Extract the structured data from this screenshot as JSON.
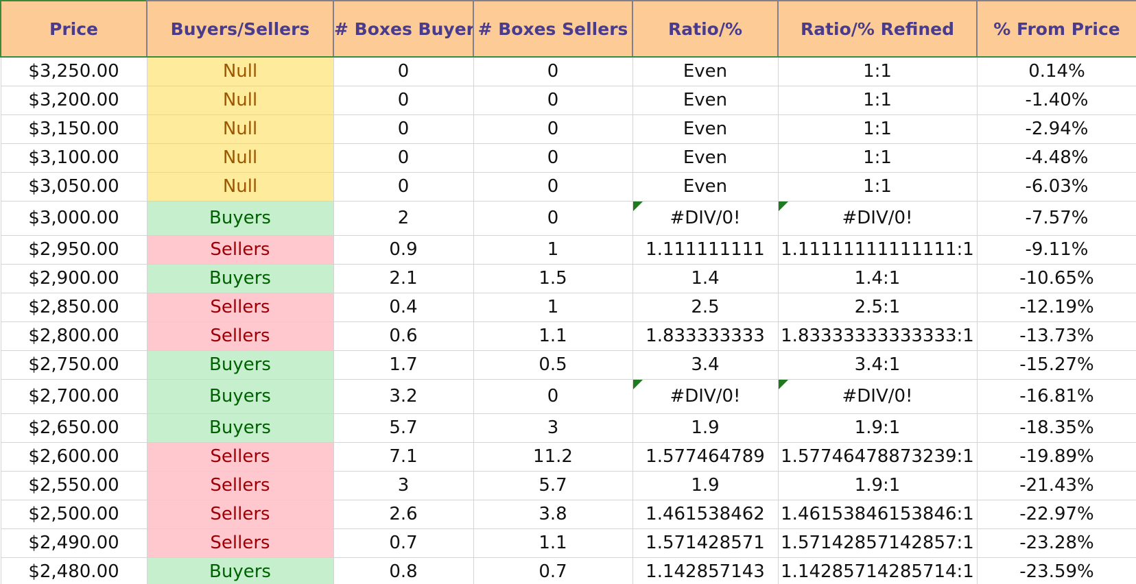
{
  "columns": [
    "Price",
    "Buyers/Sellers",
    "# Boxes Buyers",
    "# Boxes Sellers",
    "Ratio/%",
    "Ratio/% Refined",
    "% From Price"
  ],
  "rows": [
    {
      "price": "$3,250.00",
      "side": "Null",
      "boxes_buyers": "0",
      "boxes_sellers": "0",
      "ratio": "Even",
      "ratio_refined": "1:1",
      "from_price": "0.14%"
    },
    {
      "price": "$3,200.00",
      "side": "Null",
      "boxes_buyers": "0",
      "boxes_sellers": "0",
      "ratio": "Even",
      "ratio_refined": "1:1",
      "from_price": "-1.40%"
    },
    {
      "price": "$3,150.00",
      "side": "Null",
      "boxes_buyers": "0",
      "boxes_sellers": "0",
      "ratio": "Even",
      "ratio_refined": "1:1",
      "from_price": "-2.94%"
    },
    {
      "price": "$3,100.00",
      "side": "Null",
      "boxes_buyers": "0",
      "boxes_sellers": "0",
      "ratio": "Even",
      "ratio_refined": "1:1",
      "from_price": "-4.48%"
    },
    {
      "price": "$3,050.00",
      "side": "Null",
      "boxes_buyers": "0",
      "boxes_sellers": "0",
      "ratio": "Even",
      "ratio_refined": "1:1",
      "from_price": "-6.03%"
    },
    {
      "price": "$3,000.00",
      "side": "Buyers",
      "boxes_buyers": "2",
      "boxes_sellers": "0",
      "ratio": "#DIV/0!",
      "ratio_refined": "#DIV/0!",
      "from_price": "-7.57%"
    },
    {
      "price": "$2,950.00",
      "side": "Sellers",
      "boxes_buyers": "0.9",
      "boxes_sellers": "1",
      "ratio": "1.111111111",
      "ratio_refined": "1.11111111111111:1",
      "from_price": "-9.11%"
    },
    {
      "price": "$2,900.00",
      "side": "Buyers",
      "boxes_buyers": "2.1",
      "boxes_sellers": "1.5",
      "ratio": "1.4",
      "ratio_refined": "1.4:1",
      "from_price": "-10.65%"
    },
    {
      "price": "$2,850.00",
      "side": "Sellers",
      "boxes_buyers": "0.4",
      "boxes_sellers": "1",
      "ratio": "2.5",
      "ratio_refined": "2.5:1",
      "from_price": "-12.19%"
    },
    {
      "price": "$2,800.00",
      "side": "Sellers",
      "boxes_buyers": "0.6",
      "boxes_sellers": "1.1",
      "ratio": "1.833333333",
      "ratio_refined": "1.83333333333333:1",
      "from_price": "-13.73%"
    },
    {
      "price": "$2,750.00",
      "side": "Buyers",
      "boxes_buyers": "1.7",
      "boxes_sellers": "0.5",
      "ratio": "3.4",
      "ratio_refined": "3.4:1",
      "from_price": "-15.27%"
    },
    {
      "price": "$2,700.00",
      "side": "Buyers",
      "boxes_buyers": "3.2",
      "boxes_sellers": "0",
      "ratio": "#DIV/0!",
      "ratio_refined": "#DIV/0!",
      "from_price": "-16.81%"
    },
    {
      "price": "$2,650.00",
      "side": "Buyers",
      "boxes_buyers": "5.7",
      "boxes_sellers": "3",
      "ratio": "1.9",
      "ratio_refined": "1.9:1",
      "from_price": "-18.35%"
    },
    {
      "price": "$2,600.00",
      "side": "Sellers",
      "boxes_buyers": "7.1",
      "boxes_sellers": "11.2",
      "ratio": "1.577464789",
      "ratio_refined": "1.57746478873239:1",
      "from_price": "-19.89%"
    },
    {
      "price": "$2,550.00",
      "side": "Sellers",
      "boxes_buyers": "3",
      "boxes_sellers": "5.7",
      "ratio": "1.9",
      "ratio_refined": "1.9:1",
      "from_price": "-21.43%"
    },
    {
      "price": "$2,500.00",
      "side": "Sellers",
      "boxes_buyers": "2.6",
      "boxes_sellers": "3.8",
      "ratio": "1.461538462",
      "ratio_refined": "1.46153846153846:1",
      "from_price": "-22.97%"
    },
    {
      "price": "$2,490.00",
      "side": "Sellers",
      "boxes_buyers": "0.7",
      "boxes_sellers": "1.1",
      "ratio": "1.571428571",
      "ratio_refined": "1.57142857142857:1",
      "from_price": "-23.28%"
    },
    {
      "price": "$2,480.00",
      "side": "Buyers",
      "boxes_buyers": "0.8",
      "boxes_sellers": "0.7",
      "ratio": "1.142857143",
      "ratio_refined": "1.14285714285714:1",
      "from_price": "-23.59%"
    }
  ],
  "colors": {
    "header_fill": "#fdcb96",
    "header_text": "#4a3c8a",
    "null_fill": "#ffeb9c",
    "null_text": "#9c5700",
    "buyers_fill": "#c6efce",
    "buyers_text": "#006100",
    "sellers_fill": "#ffc7ce",
    "sellers_text": "#9c0006",
    "error_flag": "#1e7a1e"
  }
}
